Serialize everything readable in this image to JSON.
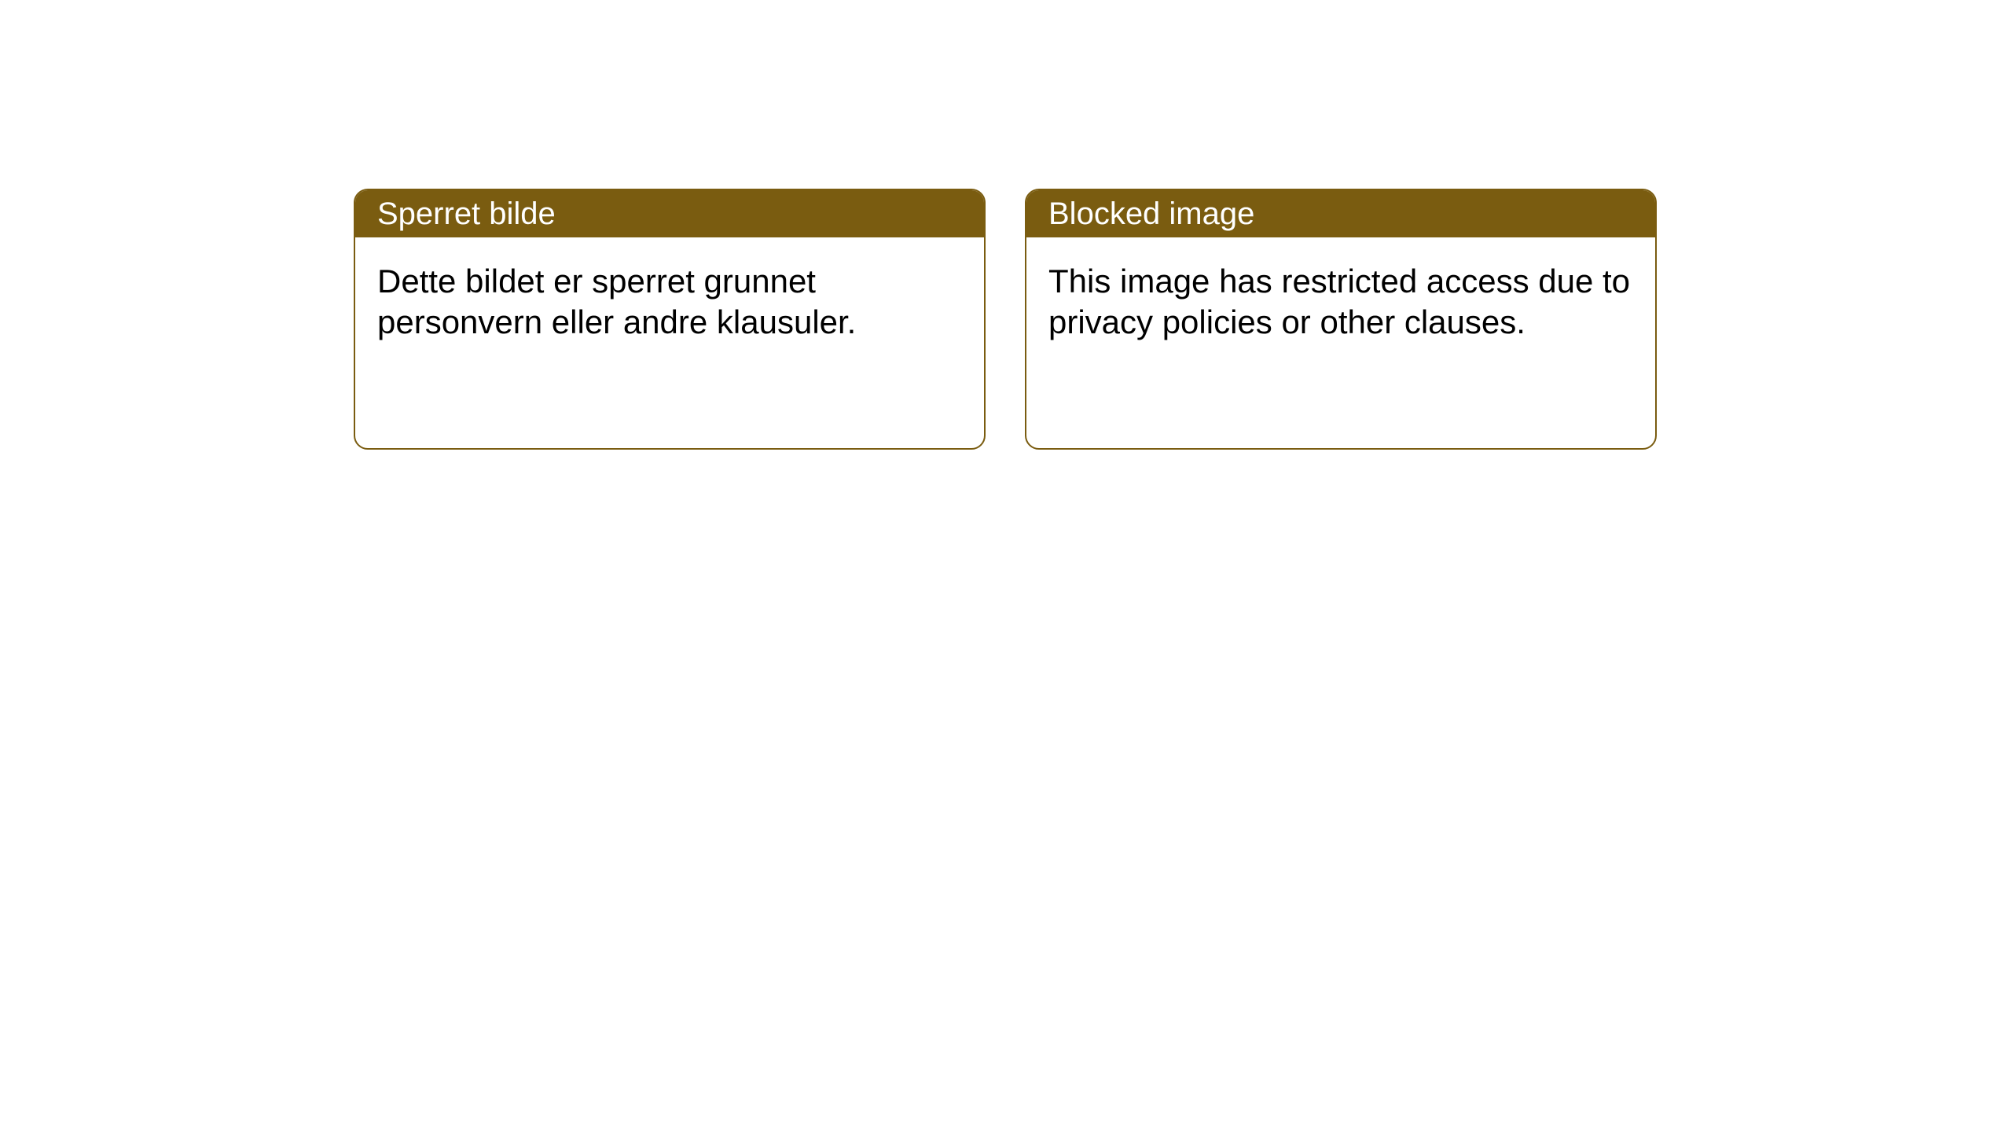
{
  "notices": [
    {
      "title": "Sperret bilde",
      "body": "Dette bildet er sperret grunnet personvern eller andre klausuler."
    },
    {
      "title": "Blocked image",
      "body": "This image has restricted access due to privacy policies or other clauses."
    }
  ],
  "style": {
    "header_bg": "#7a5c10",
    "header_color": "#ffffff",
    "border_color": "#7a5c10",
    "body_bg": "#ffffff",
    "body_color": "#000000",
    "border_radius": 18,
    "title_fontsize": 40,
    "body_fontsize": 42
  }
}
